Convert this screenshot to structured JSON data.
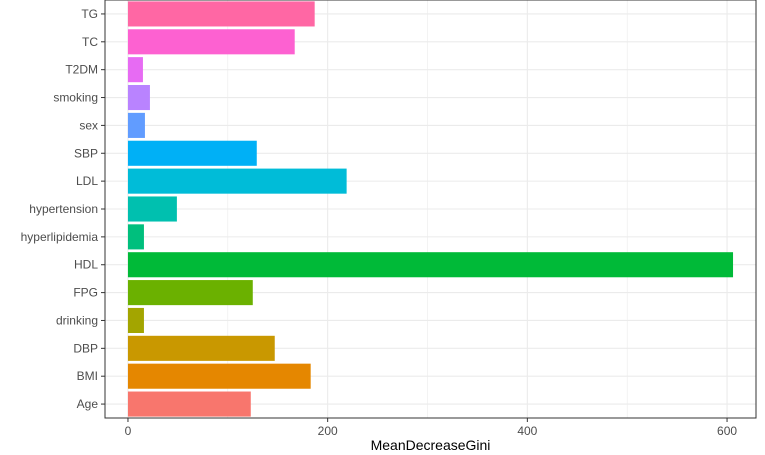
{
  "chart_data": {
    "type": "bar",
    "orientation": "horizontal",
    "categories": [
      "Age",
      "BMI",
      "DBP",
      "drinking",
      "FPG",
      "HDL",
      "hyperlipidemia",
      "hypertension",
      "LDL",
      "SBP",
      "sex",
      "smoking",
      "T2DM",
      "TC",
      "TG"
    ],
    "values": [
      123,
      183,
      147,
      16,
      125,
      606,
      16,
      49,
      219,
      129,
      17,
      22,
      15,
      167,
      187
    ],
    "colors": [
      "#F8766D",
      "#E58700",
      "#C99800",
      "#A3A500",
      "#6BB100",
      "#00BA38",
      "#00BF7D",
      "#00C0AF",
      "#00BCD8",
      "#00B0F6",
      "#619CFF",
      "#B983FF",
      "#E76BF3",
      "#FD61D1",
      "#FF67A4"
    ],
    "xlabel": "MeanDecreaseGini",
    "ylabel": "",
    "title": "",
    "xlim": [
      -23,
      629
    ],
    "xticks": [
      0,
      200,
      400,
      600
    ],
    "grid": true,
    "background": "#ffffff",
    "gridline_color": "#ebebeb",
    "border_color": "#333333"
  }
}
